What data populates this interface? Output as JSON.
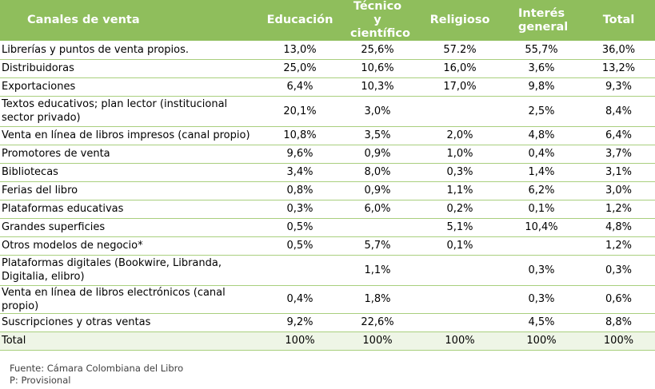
{
  "table": {
    "headers": [
      "Canales de venta",
      "Educación",
      "Técnico y científico",
      "Religioso",
      "Interés general",
      "Total"
    ],
    "rows": [
      [
        "Librerías y puntos de venta propios.",
        "13,0%",
        "25,6%",
        "57.2%",
        "55,7%",
        "36,0%"
      ],
      [
        "Distribuidoras",
        "25,0%",
        "10,6%",
        "16,0%",
        "3,6%",
        "13,2%"
      ],
      [
        "Exportaciones",
        "6,4%",
        "10,3%",
        "17,0%",
        "9,8%",
        "9,3%"
      ],
      [
        "Textos educativos; plan lector (institucional sector privado)",
        "20,1%",
        "3,0%",
        "",
        "2,5%",
        "8,4%"
      ],
      [
        "Venta en línea de libros impresos (canal propio)",
        "10,8%",
        "3,5%",
        "2,0%",
        "4,8%",
        "6,4%"
      ],
      [
        "Promotores de venta",
        "9,6%",
        "0,9%",
        "1,0%",
        "0,4%",
        "3,7%"
      ],
      [
        "Bibliotecas",
        "3,4%",
        "8,0%",
        "0,3%",
        "1,4%",
        "3,1%"
      ],
      [
        "Ferias del libro",
        "0,8%",
        "0,9%",
        "1,1%",
        "6,2%",
        "3,0%"
      ],
      [
        "Plataformas educativas",
        "0,3%",
        "6,0%",
        "0,2%",
        "0,1%",
        "1,2%"
      ],
      [
        "Grandes superficies",
        "0,5%",
        "",
        "5,1%",
        "10,4%",
        "4,8%"
      ],
      [
        "Otros modelos de negocio*",
        "0,5%",
        "5,7%",
        "0,1%",
        "",
        "1,2%"
      ],
      [
        "Plataformas digitales (Bookwire, Libranda, Digitalia, elibro)",
        "",
        "1,1%",
        "",
        "0,3%",
        "0,3%"
      ],
      [
        "Venta en línea de libros electrónicos (canal propio)",
        "0,4%",
        "1,8%",
        "",
        "0,3%",
        "0,6%"
      ],
      [
        "Suscripciones y otras ventas",
        "9,2%",
        "22,6%",
        "",
        "4,5%",
        "8,8%"
      ],
      [
        "Total",
        "100%",
        "100%",
        "100%",
        "100%",
        "100%"
      ]
    ],
    "header_color": "#8fbe5c",
    "border_color": "#a9cf7e",
    "total_row_color": "#eef5e6"
  },
  "notes": {
    "source": "Fuente: Cámara Colombiana del Libro",
    "provisional": "P: Provisional"
  }
}
